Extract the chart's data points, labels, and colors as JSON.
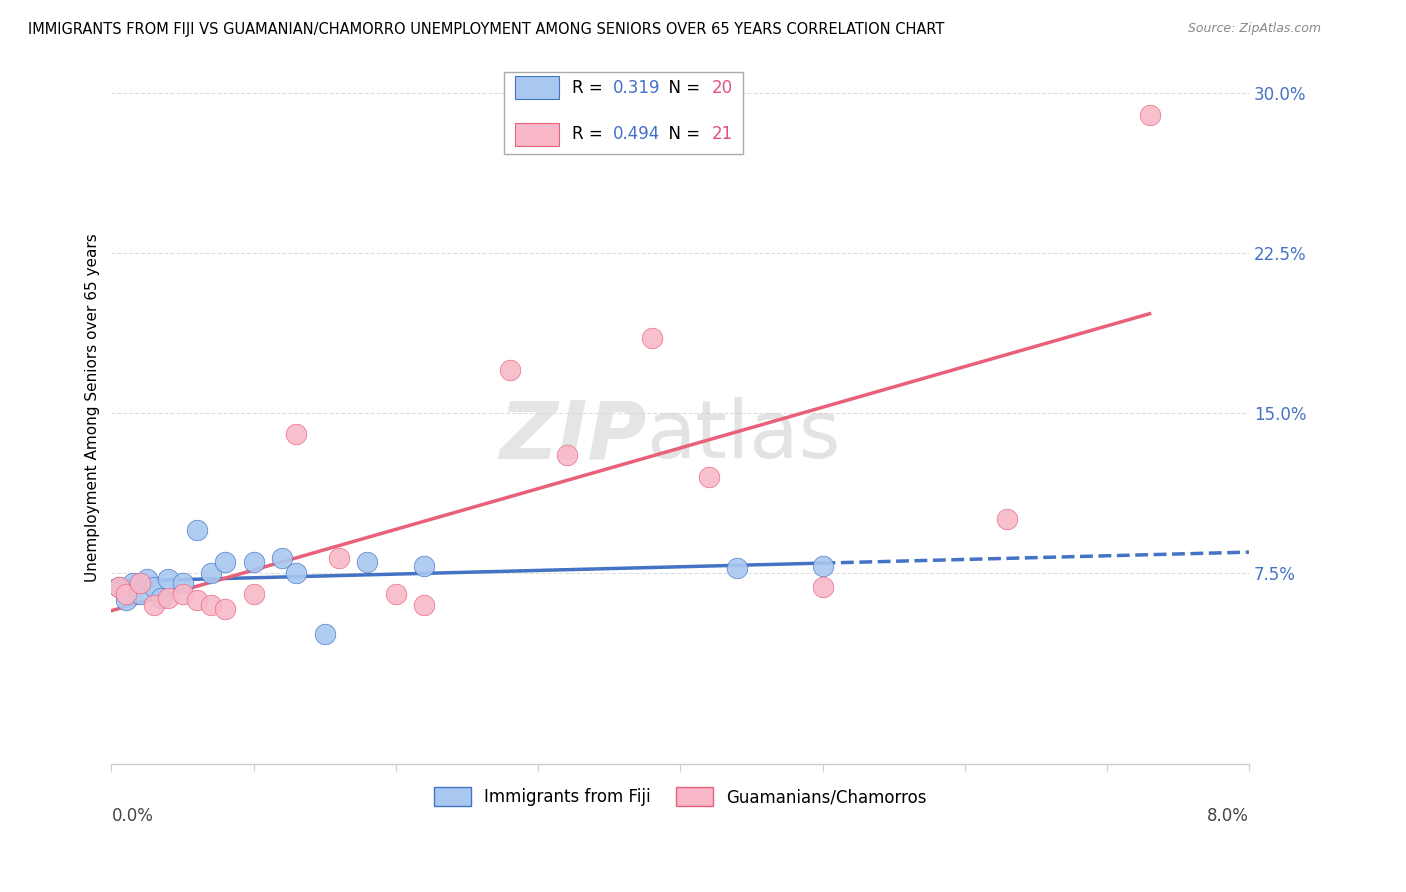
{
  "title": "IMMIGRANTS FROM FIJI VS GUAMANIAN/CHAMORRO UNEMPLOYMENT AMONG SENIORS OVER 65 YEARS CORRELATION CHART",
  "source": "Source: ZipAtlas.com",
  "ylabel": "Unemployment Among Seniors over 65 years",
  "right_yticks": [
    0.0,
    0.075,
    0.15,
    0.225,
    0.3
  ],
  "right_yticklabels": [
    "",
    "7.5%",
    "15.0%",
    "22.5%",
    "30.0%"
  ],
  "xmin": 0.0,
  "xmax": 0.08,
  "ymin": -0.015,
  "ymax": 0.32,
  "fiji_R": 0.319,
  "fiji_N": 20,
  "guam_R": 0.494,
  "guam_N": 21,
  "fiji_color": "#a8c8f0",
  "guam_color": "#f8b8c8",
  "fiji_line_color": "#4472c4",
  "guam_line_color": "#e8607a",
  "fiji_scatter_x": [
    0.0005,
    0.001,
    0.0015,
    0.002,
    0.0025,
    0.003,
    0.0035,
    0.004,
    0.005,
    0.006,
    0.007,
    0.008,
    0.01,
    0.012,
    0.013,
    0.015,
    0.018,
    0.022,
    0.044,
    0.05
  ],
  "fiji_scatter_y": [
    0.068,
    0.062,
    0.07,
    0.065,
    0.072,
    0.068,
    0.063,
    0.072,
    0.07,
    0.095,
    0.075,
    0.08,
    0.08,
    0.082,
    0.075,
    0.046,
    0.08,
    0.078,
    0.077,
    0.078
  ],
  "guam_scatter_x": [
    0.0005,
    0.001,
    0.002,
    0.003,
    0.004,
    0.005,
    0.006,
    0.007,
    0.008,
    0.01,
    0.013,
    0.016,
    0.02,
    0.022,
    0.028,
    0.032,
    0.038,
    0.042,
    0.05,
    0.063,
    0.073
  ],
  "guam_scatter_y": [
    0.068,
    0.065,
    0.07,
    0.06,
    0.063,
    0.065,
    0.062,
    0.06,
    0.058,
    0.065,
    0.14,
    0.082,
    0.065,
    0.06,
    0.17,
    0.13,
    0.185,
    0.12,
    0.068,
    0.1,
    0.29
  ],
  "watermark_zip": "ZIP",
  "watermark_atlas": "atlas",
  "legend_fiji_label": "Immigrants from Fiji",
  "legend_guam_label": "Guamanians/Chamorros"
}
